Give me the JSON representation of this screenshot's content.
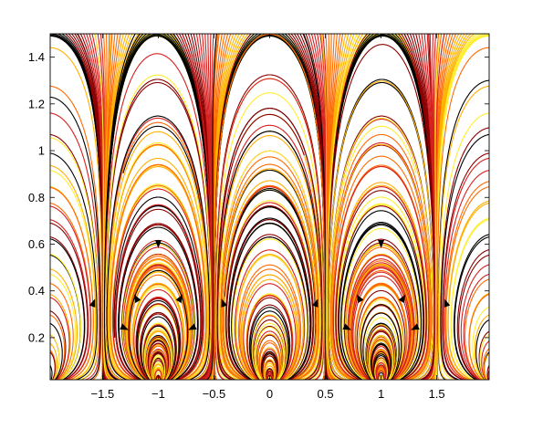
{
  "chart_data": {
    "type": "line",
    "title": "",
    "xlabel": "",
    "ylabel": "",
    "xlim": [
      -1.97,
      1.97
    ],
    "ylim": [
      0.02,
      1.5
    ],
    "grid": false,
    "legend": "none",
    "x_ticks": [
      {
        "value": -1.5,
        "label": "−1.5"
      },
      {
        "value": -1.0,
        "label": "−1"
      },
      {
        "value": -0.5,
        "label": "−0.5"
      },
      {
        "value": 0.0,
        "label": "0"
      },
      {
        "value": 0.5,
        "label": "0.5"
      },
      {
        "value": 1.0,
        "label": "1"
      },
      {
        "value": 1.5,
        "label": "1.5"
      }
    ],
    "y_ticks": [
      {
        "value": 0.2,
        "label": "0.2"
      },
      {
        "value": 0.4,
        "label": "0.4"
      },
      {
        "value": 0.6,
        "label": "0.6"
      },
      {
        "value": 0.8,
        "label": "0.8"
      },
      {
        "value": 1.0,
        "label": "1"
      },
      {
        "value": 1.2,
        "label": "1.2"
      },
      {
        "value": 1.4,
        "label": "1.4"
      }
    ],
    "colormap": [
      "#000000",
      "#8b0000",
      "#d62020",
      "#ff6a00",
      "#ffb000",
      "#ffee30"
    ],
    "period": 1.0,
    "saddle_points": [
      {
        "x": -1.0,
        "y": 0.5
      },
      {
        "x": 0.0,
        "y": 0.5
      },
      {
        "x": 1.0,
        "y": 0.5
      }
    ],
    "arrows": [
      {
        "x": -1.0,
        "y": 0.6,
        "dx": 0,
        "dy": -1
      },
      {
        "x": 1.0,
        "y": 0.6,
        "dx": 0,
        "dy": -1
      },
      {
        "x": -1.2,
        "y": 0.37,
        "dx": -0.5,
        "dy": 0.87
      },
      {
        "x": -0.8,
        "y": 0.37,
        "dx": 0.5,
        "dy": 0.87
      },
      {
        "x": 0.8,
        "y": 0.37,
        "dx": -0.5,
        "dy": 0.87
      },
      {
        "x": 1.2,
        "y": 0.37,
        "dx": 0.5,
        "dy": 0.87
      },
      {
        "x": -1.58,
        "y": 0.35,
        "dx": 0.35,
        "dy": 0.94
      },
      {
        "x": 0.42,
        "y": 0.35,
        "dx": 0.35,
        "dy": 0.94
      },
      {
        "x": 1.58,
        "y": 0.35,
        "dx": -0.35,
        "dy": 0.94
      },
      {
        "x": -0.42,
        "y": 0.35,
        "dx": -0.35,
        "dy": 0.94
      },
      {
        "x": -1.3,
        "y": 0.24,
        "dx": 0.9,
        "dy": -0.44
      },
      {
        "x": 0.7,
        "y": 0.24,
        "dx": 0.9,
        "dy": -0.44
      },
      {
        "x": -0.7,
        "y": 0.24,
        "dx": -0.9,
        "dy": -0.44
      },
      {
        "x": 1.3,
        "y": 0.24,
        "dx": -0.9,
        "dy": -0.44
      }
    ]
  }
}
